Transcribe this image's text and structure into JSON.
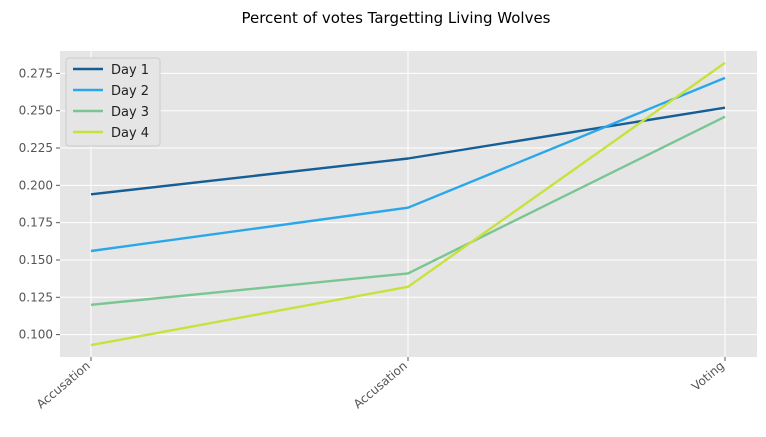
{
  "chart_data": {
    "type": "line",
    "title": "Percent of votes Targetting Living Wolves",
    "xlabel": "",
    "ylabel": "",
    "categories": [
      "Accusation",
      "Accusation",
      "Voting"
    ],
    "ylim": [
      0.085,
      0.29
    ],
    "yticks": [
      "0.100",
      "0.125",
      "0.150",
      "0.175",
      "0.200",
      "0.225",
      "0.250",
      "0.275"
    ],
    "grid": true,
    "legend_position": "top-left",
    "background": "#e5e5e5",
    "series": [
      {
        "name": "Day 1",
        "color": "#155e96",
        "values": [
          0.194,
          0.218,
          0.252
        ]
      },
      {
        "name": "Day 2",
        "color": "#2aa7ea",
        "values": [
          0.156,
          0.185,
          0.272
        ]
      },
      {
        "name": "Day 3",
        "color": "#79c692",
        "values": [
          0.12,
          0.141,
          0.246
        ]
      },
      {
        "name": "Day 4",
        "color": "#c8e13c",
        "values": [
          0.093,
          0.132,
          0.282
        ]
      }
    ]
  }
}
